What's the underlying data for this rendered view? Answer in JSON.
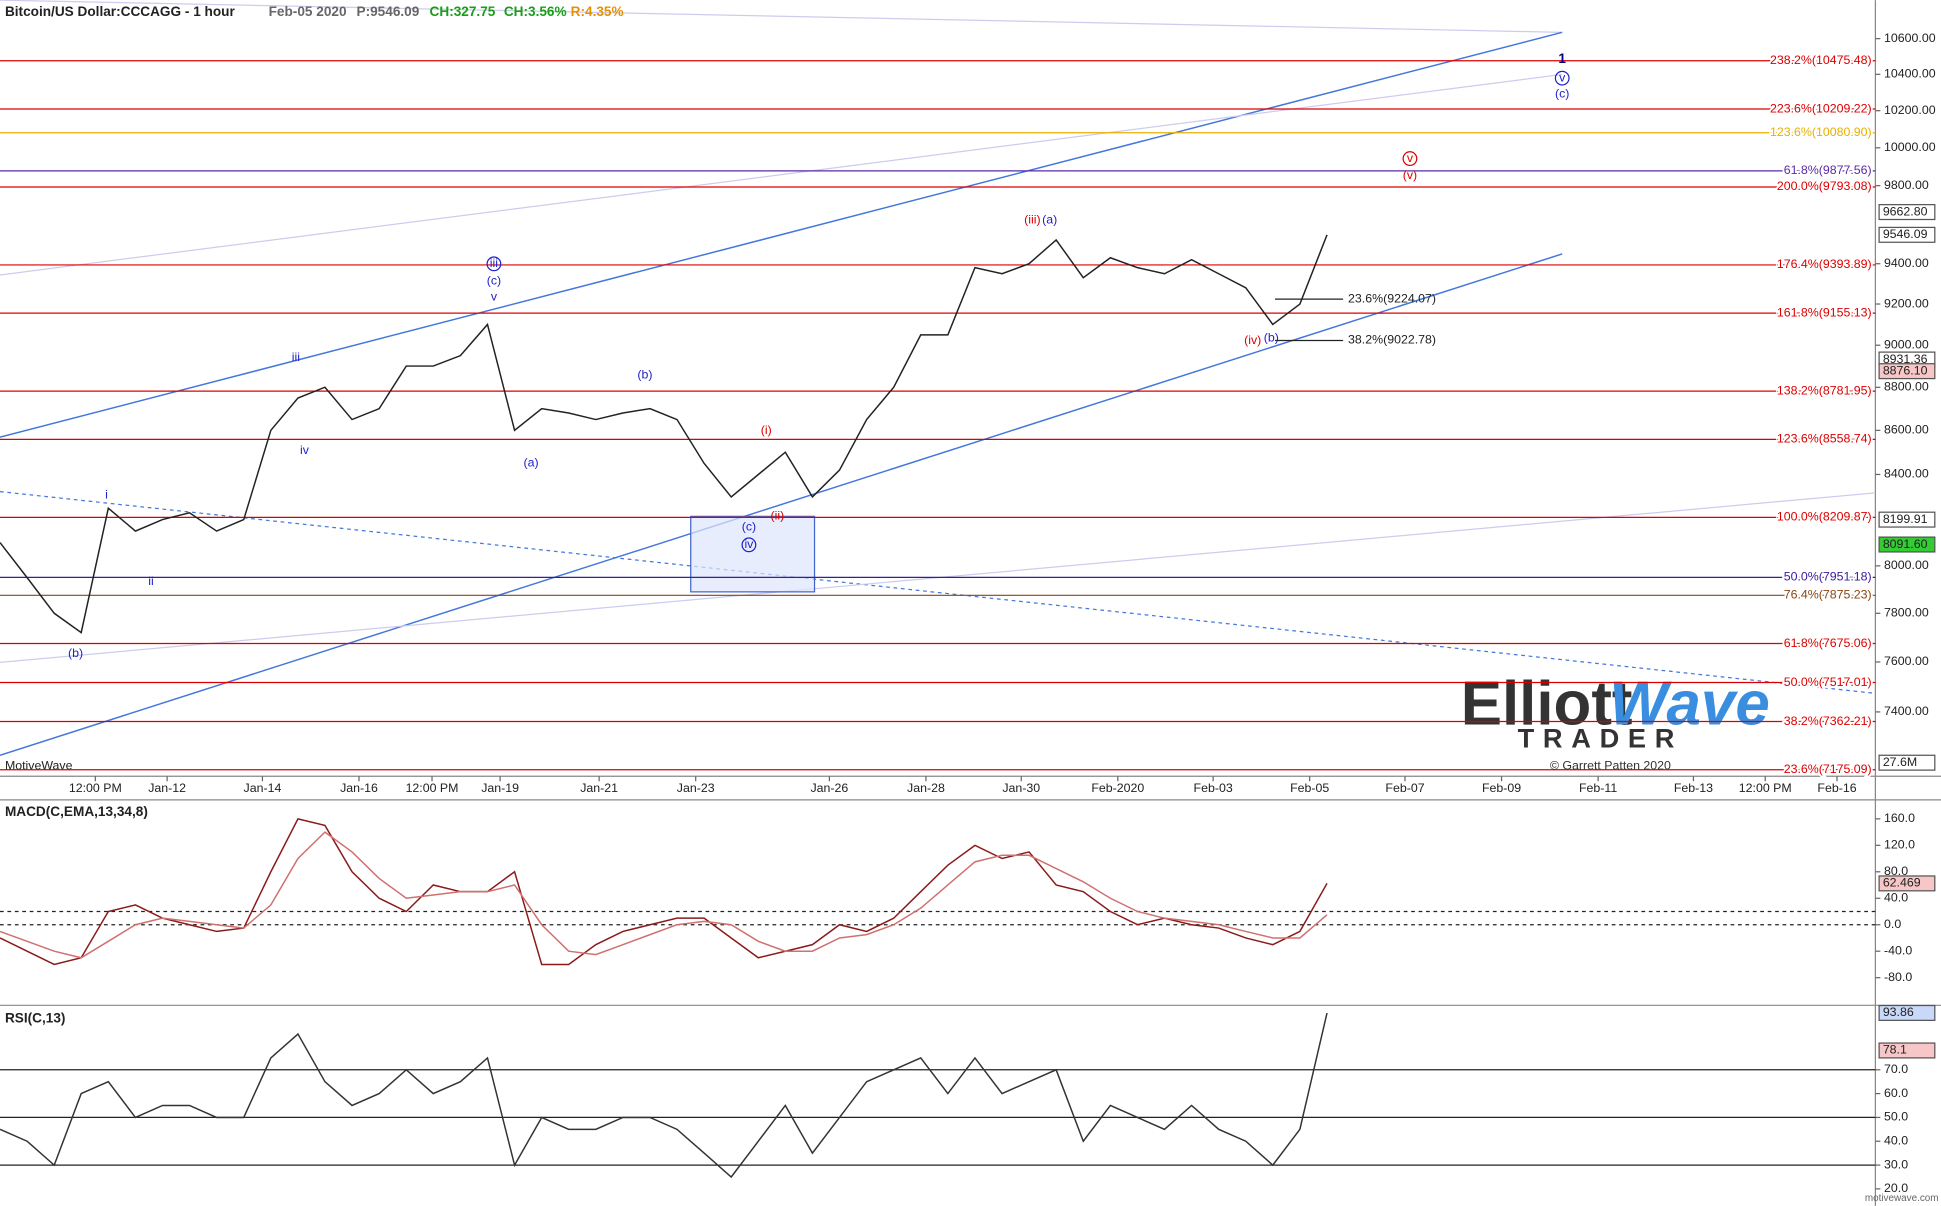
{
  "header": {
    "title": "Bitcoin/US Dollar:CCCAGG - 1 hour",
    "date": "Feb-05 2020",
    "price": "P:9546.09",
    "change": "CH:327.75",
    "change_pct": "CH:3.56%",
    "range": "R:4.35%"
  },
  "chart_data": [
    {
      "type": "line",
      "name": "price",
      "log": true,
      "ylim": [
        7150,
        10820
      ],
      "color": "#222222",
      "yticks": [
        {
          "value": 10600,
          "label": "10600.00"
        },
        {
          "value": 10400,
          "label": "10400.00"
        },
        {
          "value": 10200,
          "label": "10200.00"
        },
        {
          "value": 10000,
          "label": "10000.00"
        },
        {
          "value": 9800,
          "label": "9800.00"
        },
        {
          "value": 9400,
          "label": "9400.00"
        },
        {
          "value": 9200,
          "label": "9200.00"
        },
        {
          "value": 9000,
          "label": "9000.00"
        },
        {
          "value": 8800,
          "label": "8800.00"
        },
        {
          "value": 8600,
          "label": "8600.00"
        },
        {
          "value": 8400,
          "label": "8400.00"
        },
        {
          "value": 8000,
          "label": "8000.00"
        },
        {
          "value": 7800,
          "label": "7800.00"
        },
        {
          "value": 7600,
          "label": "7600.00"
        },
        {
          "value": 7400,
          "label": "7400.00"
        }
      ],
      "xticks": [
        "12:00 PM",
        "Jan-12",
        "Jan-14",
        "Jan-16",
        "12:00 PM",
        "Jan-19",
        "Jan-21",
        "Jan-23",
        "Jan-26",
        "Jan-28",
        "Jan-30",
        "Feb-2020",
        "Feb-03",
        "Feb-05",
        "Feb-07",
        "Feb-09",
        "Feb-11",
        "Feb-13",
        "12:00 PM",
        "Feb-16"
      ],
      "values": [
        8100,
        7950,
        7800,
        7720,
        8250,
        8150,
        8200,
        8230,
        8150,
        8200,
        8600,
        8750,
        8800,
        8650,
        8700,
        8900,
        8900,
        8950,
        9100,
        8600,
        8700,
        8680,
        8650,
        8680,
        8700,
        8650,
        8450,
        8300,
        8400,
        8500,
        8300,
        8420,
        8650,
        8800,
        9050,
        9050,
        9380,
        9350,
        9400,
        9520,
        9330,
        9430,
        9380,
        9350,
        9420,
        9350,
        9280,
        9100,
        9200,
        9546.09
      ],
      "levels": [
        {
          "label": "238.2%(10475.48)",
          "value": 10475.48,
          "color": "#dd0000"
        },
        {
          "label": "223.6%(10209.22)",
          "value": 10209.22,
          "color": "#dd0000"
        },
        {
          "label": "123.6%(10080.90)",
          "value": 10080.9,
          "color": "#e8b000"
        },
        {
          "label": "61.8%(9877.56)",
          "value": 9877.56,
          "color": "#5a2aa8"
        },
        {
          "label": "200.0%(9793.08)",
          "value": 9793.08,
          "color": "#dd0000"
        },
        {
          "label": "176.4%(9393.89)",
          "value": 9393.89,
          "color": "#dd0000"
        },
        {
          "label": "161.8%(9155.13)",
          "value": 9155.13,
          "color": "#dd0000"
        },
        {
          "label": "138.2%(8781.95)",
          "value": 8781.95,
          "color": "#dd0000"
        },
        {
          "label": "123.6%(8558.74)",
          "value": 8558.74,
          "color": "#dd0000"
        },
        {
          "label": "100.0%(8209.87)",
          "value": 8209.87,
          "color": "#dd0000"
        },
        {
          "label": "50.0%(7951.18)",
          "value": 7951.18,
          "color": "#3b1a9e"
        },
        {
          "label": "76.4%(7875.23)",
          "value": 7875.23,
          "color": "#8b4513"
        },
        {
          "label": "61.8%(7675.06)",
          "value": 7675.06,
          "color": "#dd0000"
        },
        {
          "label": "50.0%(7517.01)",
          "value": 7517.01,
          "color": "#dd0000"
        },
        {
          "label": "38.2%(7362.21)",
          "value": 7362.21,
          "color": "#dd0000"
        },
        {
          "label": "23.6%(7175.09)",
          "value": 7175.09,
          "color": "#dd0000"
        }
      ],
      "tags": [
        {
          "value": 9662.8,
          "label": "9662.80",
          "color": "#ffffff"
        },
        {
          "value": 9546.09,
          "label": "9546.09",
          "color": "#ffffff"
        },
        {
          "value": 8931.36,
          "label": "8931.36",
          "color": "#ffffff"
        },
        {
          "value": 8876.1,
          "label": "8876.10",
          "color": "#f7c6c6"
        },
        {
          "value": 8199.91,
          "label": "8199.91",
          "color": "#ffffff"
        },
        {
          "value": 8091.6,
          "label": "8091.60",
          "color": "#33cc33"
        }
      ],
      "annotations": [
        {
          "text": "23.6%(9224.07)",
          "value": 9224.07
        },
        {
          "text": "38.2%(9022.78)",
          "value": 9022.78
        }
      ],
      "waves": [
        {
          "text": "i",
          "color": "#2222cc"
        },
        {
          "text": "ii",
          "color": "#2222cc"
        },
        {
          "text": "iii",
          "color": "#2222cc"
        },
        {
          "text": "iv",
          "color": "#2222cc"
        },
        {
          "text": "(b)",
          "color": "#2222cc"
        },
        {
          "text": "iii",
          "color": "#2222cc"
        },
        {
          "text": "(c)",
          "color": "#2222cc"
        },
        {
          "text": "v",
          "color": "#2222cc"
        },
        {
          "text": "(a)",
          "color": "#2222cc"
        },
        {
          "text": "(b)",
          "color": "#2222cc"
        },
        {
          "text": "(i)",
          "color": "#dd0000"
        },
        {
          "text": "(ii)",
          "color": "#dd0000"
        },
        {
          "text": "(c)",
          "color": "#2222cc"
        },
        {
          "text": "iv",
          "color": "#2222cc"
        },
        {
          "text": "(iii)",
          "color": "#dd0000"
        },
        {
          "text": "(a)",
          "color": "#2222cc"
        },
        {
          "text": "(iv)",
          "color": "#dd0000"
        },
        {
          "text": "(b)",
          "color": "#2222cc"
        },
        {
          "text": "v",
          "color": "#dd0000"
        },
        {
          "text": "(v)",
          "color": "#dd0000"
        },
        {
          "text": "1",
          "color": "#000080"
        },
        {
          "text": "v",
          "color": "#2222cc"
        },
        {
          "text": "(c)",
          "color": "#2222cc"
        }
      ],
      "volume_label": "27.6M"
    },
    {
      "type": "line",
      "title": "MACD(C,EMA,13,34,8)",
      "ylim": [
        -118,
        185
      ],
      "yticks": [
        {
          "value": 160,
          "label": "160.0"
        },
        {
          "value": 120,
          "label": "120.0"
        },
        {
          "value": 80,
          "label": "80.0"
        },
        {
          "value": 40,
          "label": "40.0"
        },
        {
          "value": 0,
          "label": "0.0"
        },
        {
          "value": -40,
          "label": "-40.0"
        },
        {
          "value": -80,
          "label": "-80.0"
        }
      ],
      "levels": [
        20,
        0
      ],
      "series": [
        {
          "color": "#8b1a1a",
          "values": [
            -20,
            -40,
            -60,
            -50,
            20,
            30,
            10,
            0,
            -10,
            -5,
            80,
            160,
            150,
            80,
            40,
            20,
            60,
            50,
            50,
            80,
            -60,
            -60,
            -30,
            -10,
            0,
            10,
            10,
            -20,
            -50,
            -40,
            -30,
            0,
            -10,
            10,
            50,
            90,
            120,
            100,
            110,
            60,
            50,
            20,
            0,
            10,
            0,
            -5,
            -20,
            -30,
            -10,
            62.469
          ]
        },
        {
          "color": "#d07070",
          "values": [
            -10,
            -25,
            -40,
            -50,
            -25,
            0,
            10,
            5,
            0,
            -5,
            30,
            100,
            140,
            110,
            70,
            40,
            45,
            50,
            50,
            60,
            0,
            -40,
            -45,
            -30,
            -15,
            0,
            5,
            0,
            -25,
            -40,
            -40,
            -20,
            -15,
            0,
            25,
            60,
            95,
            105,
            105,
            85,
            65,
            40,
            20,
            10,
            5,
            0,
            -10,
            -20,
            -20,
            15
          ]
        }
      ],
      "tags": [
        {
          "value": 62.469,
          "label": "62.469",
          "color": "#f7c6c6"
        }
      ]
    },
    {
      "type": "line",
      "title": "RSI(C,13)",
      "ylim": [
        16,
        95.5
      ],
      "yticks": [
        {
          "value": 70,
          "label": "70.0"
        },
        {
          "value": 60,
          "label": "60.0"
        },
        {
          "value": 50,
          "label": "50.0"
        },
        {
          "value": 40,
          "label": "40.0"
        },
        {
          "value": 30,
          "label": "30.0"
        },
        {
          "value": 20,
          "label": "20.0"
        }
      ],
      "levels": [
        70,
        50,
        30
      ],
      "series": [
        {
          "color": "#333333",
          "values": [
            45,
            40,
            30,
            60,
            65,
            50,
            55,
            55,
            50,
            50,
            75,
            85,
            65,
            55,
            60,
            70,
            60,
            65,
            75,
            30,
            50,
            45,
            45,
            50,
            50,
            45,
            35,
            25,
            40,
            55,
            35,
            50,
            65,
            70,
            75,
            60,
            75,
            60,
            65,
            70,
            40,
            55,
            50,
            45,
            55,
            45,
            40,
            30,
            45,
            93.86
          ]
        }
      ],
      "tags": [
        {
          "value": 93.86,
          "label": "93.86",
          "color": "#c8d8f8"
        },
        {
          "value": 78.1,
          "label": "78.1",
          "color": "#f7c6c6"
        }
      ]
    }
  ],
  "footer": {
    "source": "MotiveWave",
    "copyright": "© Garrett Patten 2020",
    "site": "motivewave.com"
  },
  "logo": {
    "word1": "Elliott",
    "word2": "Wave",
    "word3": "TRADER"
  }
}
